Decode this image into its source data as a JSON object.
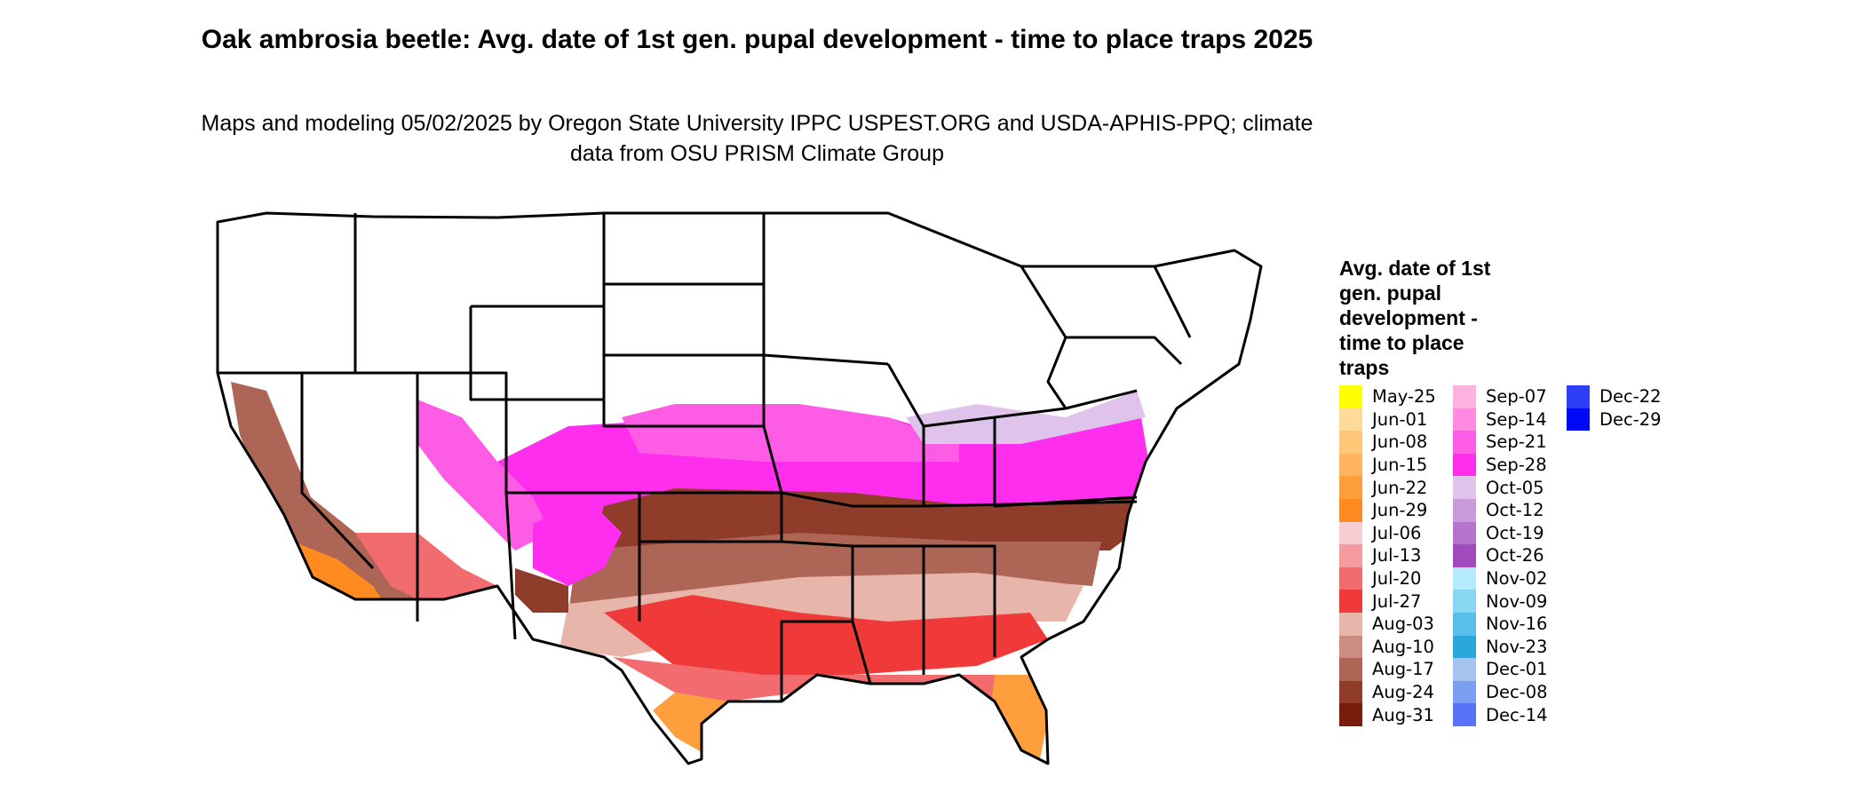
{
  "title": "Oak ambrosia beetle: Avg. date of 1st gen. pupal development - time to place traps 2025",
  "subtitle": "Maps and modeling 05/02/2025 by Oregon State University IPPC USPEST.ORG and USDA-APHIS-PPQ; climate data from OSU PRISM Climate Group",
  "legend": {
    "title": "Avg. date of 1st gen. pupal development - time to place traps",
    "columns": [
      [
        {
          "label": "May-25",
          "color": "#ffff00"
        },
        {
          "label": "Jun-01",
          "color": "#ffdb99"
        },
        {
          "label": "Jun-08",
          "color": "#ffc878"
        },
        {
          "label": "Jun-15",
          "color": "#ffb55e"
        },
        {
          "label": "Jun-22",
          "color": "#ff9e3d"
        },
        {
          "label": "Jun-29",
          "color": "#ff8a1f"
        },
        {
          "label": "Jul-06",
          "color": "#f7cfd3"
        },
        {
          "label": "Jul-13",
          "color": "#f59b9f"
        },
        {
          "label": "Jul-20",
          "color": "#f26b6f"
        },
        {
          "label": "Jul-27",
          "color": "#f03a3a"
        },
        {
          "label": "Aug-03",
          "color": "#e8b5aa"
        },
        {
          "label": "Aug-10",
          "color": "#cb8d81"
        },
        {
          "label": "Aug-17",
          "color": "#ad6555"
        },
        {
          "label": "Aug-24",
          "color": "#8f3c2a"
        },
        {
          "label": "Aug-31",
          "color": "#7a1c0c"
        }
      ],
      [
        {
          "label": "Sep-07",
          "color": "#ffb3df"
        },
        {
          "label": "Sep-14",
          "color": "#ff8ae0"
        },
        {
          "label": "Sep-21",
          "color": "#ff5ce6"
        },
        {
          "label": "Sep-28",
          "color": "#ff2eef"
        },
        {
          "label": "Oct-05",
          "color": "#e0c3ea"
        },
        {
          "label": "Oct-12",
          "color": "#cb9ad9"
        },
        {
          "label": "Oct-19",
          "color": "#b673cc"
        },
        {
          "label": "Oct-26",
          "color": "#a14bbd"
        },
        {
          "label": "Nov-02",
          "color": "#b5ebfd"
        },
        {
          "label": "Nov-09",
          "color": "#87d6f2"
        },
        {
          "label": "Nov-16",
          "color": "#58bfe8"
        },
        {
          "label": "Nov-23",
          "color": "#2aa8dc"
        },
        {
          "label": "Dec-01",
          "color": "#a4c3ee"
        },
        {
          "label": "Dec-08",
          "color": "#7b9df2"
        },
        {
          "label": "Dec-14",
          "color": "#5872f6"
        }
      ],
      [
        {
          "label": "Dec-22",
          "color": "#2f3ff8"
        },
        {
          "label": "Dec-29",
          "color": "#0008f8"
        }
      ]
    ]
  }
}
